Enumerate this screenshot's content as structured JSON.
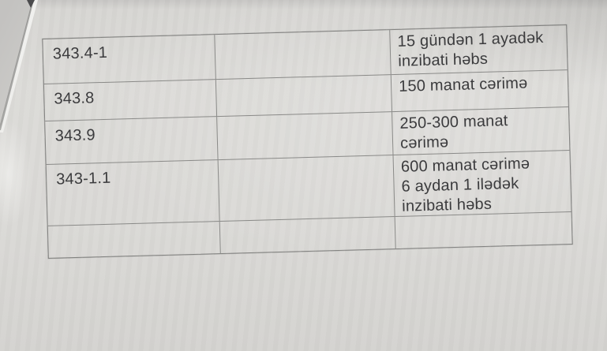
{
  "colors": {
    "paper": "#dcdbd8",
    "paper_shadow": "#c7c6c4",
    "under_page": "#c9c8c5",
    "table_border": "#8a8a88",
    "text": "#3b3b3d",
    "corner_tip": "#4b4b4d"
  },
  "table": {
    "rows": [
      {
        "article": "343.4-1",
        "middle": "",
        "sanction": "15 gündən 1 ayadək\ninzibati həbs"
      },
      {
        "article": "343.8",
        "middle": "",
        "sanction": "150 manat cərimə"
      },
      {
        "article": "343.9",
        "middle": "",
        "sanction": "250-300 manat\ncərimə"
      },
      {
        "article": "343-1.1",
        "middle": "",
        "sanction": "600 manat cərimə\n6 aydan 1 ilədək\ninzibati həbs"
      },
      {
        "article": "",
        "middle": "",
        "sanction": ""
      }
    ]
  }
}
